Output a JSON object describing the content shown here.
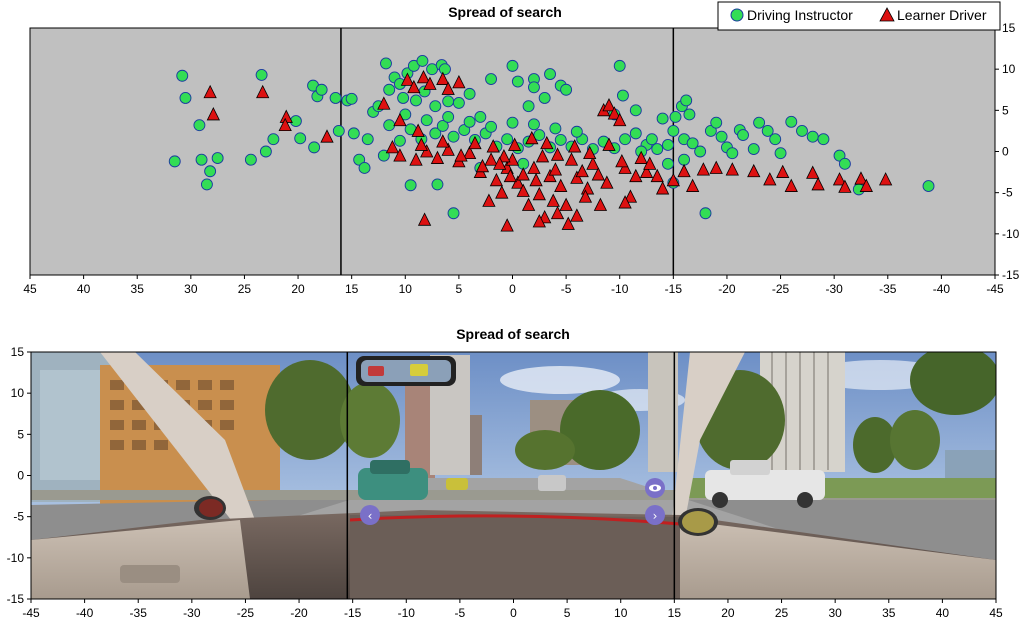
{
  "chart_data": [
    {
      "type": "scatter",
      "title": "Spread of search",
      "xlabel": "",
      "ylabel": "",
      "xlim": [
        45,
        -45
      ],
      "ylim": [
        -15,
        15
      ],
      "x_ticks": [
        45,
        40,
        35,
        30,
        25,
        20,
        15,
        10,
        5,
        0,
        -5,
        -10,
        -15,
        -20,
        -25,
        -30,
        -35,
        -40,
        -45
      ],
      "y_ticks": [
        15,
        10,
        5,
        0,
        -5,
        -10,
        -15
      ],
      "y_axis_side": "right",
      "grid": false,
      "background_color": "#c0c0c0",
      "reference_lines_x": [
        16,
        -15
      ],
      "legend": {
        "placement": "top-right",
        "entries": [
          "Driving Instructor",
          "Learner Driver"
        ]
      },
      "series": [
        {
          "name": "Driving Instructor",
          "marker": "circle",
          "color": "#33dd55",
          "points": [
            [
              30.8,
              9.2
            ],
            [
              30.5,
              6.5
            ],
            [
              31.5,
              -1.2
            ],
            [
              29.2,
              3.2
            ],
            [
              29,
              -1
            ],
            [
              28.5,
              -4
            ],
            [
              27.5,
              -0.8
            ],
            [
              28.2,
              -2.4
            ],
            [
              23.4,
              9.3
            ],
            [
              22.3,
              1.5
            ],
            [
              23,
              0
            ],
            [
              24.4,
              -1
            ],
            [
              20.2,
              3.7
            ],
            [
              19.8,
              1.6
            ],
            [
              18.6,
              8
            ],
            [
              18.2,
              6.7
            ],
            [
              18.5,
              0.5
            ],
            [
              17.8,
              7.5
            ],
            [
              16.5,
              6.5
            ],
            [
              16.2,
              2.5
            ],
            [
              15.4,
              6.2
            ],
            [
              15,
              6.4
            ],
            [
              14.8,
              2.2
            ],
            [
              14.3,
              -1
            ],
            [
              13.5,
              1.5
            ],
            [
              13,
              4.8
            ],
            [
              12.5,
              5.5
            ],
            [
              11.8,
              10.7
            ],
            [
              11,
              9
            ],
            [
              10.5,
              8.2
            ],
            [
              9.8,
              9.5
            ],
            [
              9.2,
              10.4
            ],
            [
              8.4,
              11
            ],
            [
              7.5,
              10
            ],
            [
              6.6,
              10.5
            ],
            [
              6.3,
              10
            ],
            [
              9,
              6.2
            ],
            [
              8.2,
              7.3
            ],
            [
              7.2,
              5.5
            ],
            [
              6,
              6.1
            ],
            [
              5,
              5.9
            ],
            [
              4,
              7
            ],
            [
              3,
              4.2
            ],
            [
              2,
              8.8
            ],
            [
              0,
              10.4
            ],
            [
              -0.5,
              8.5
            ],
            [
              -1.5,
              5.5
            ],
            [
              -2,
              8.8
            ],
            [
              -3.5,
              9.4
            ],
            [
              -4.5,
              8
            ],
            [
              -5,
              7.5
            ],
            [
              -2,
              7.8
            ],
            [
              -3,
              6.5
            ],
            [
              -10,
              10.4
            ],
            [
              -9.5,
              4.5
            ],
            [
              -10.3,
              6.8
            ],
            [
              -11.5,
              5
            ],
            [
              -14,
              4
            ],
            [
              -15.2,
              4.2
            ],
            [
              -15.8,
              5.5
            ],
            [
              -16.2,
              6.2
            ],
            [
              -16.5,
              4.5
            ],
            [
              -15,
              2.5
            ],
            [
              -16,
              1.5
            ],
            [
              -14.5,
              0.8
            ],
            [
              -16.8,
              1
            ],
            [
              -17.5,
              0
            ],
            [
              -18.5,
              2.5
            ],
            [
              -19.5,
              1.8
            ],
            [
              -20,
              0.5
            ],
            [
              -20.5,
              -0.2
            ],
            [
              -19,
              3.5
            ],
            [
              -21.2,
              2.6
            ],
            [
              -21.5,
              2
            ],
            [
              -22.5,
              0.3
            ],
            [
              -23,
              3.5
            ],
            [
              -23.8,
              2.5
            ],
            [
              -24.5,
              1.5
            ],
            [
              -25,
              -0.2
            ],
            [
              -26,
              3.6
            ],
            [
              -27,
              2.5
            ],
            [
              -28,
              1.8
            ],
            [
              -29,
              1.5
            ],
            [
              -30.5,
              -0.5
            ],
            [
              -31,
              -1.5
            ],
            [
              -32.3,
              -4.6
            ],
            [
              -38.8,
              -4.2
            ],
            [
              -18,
              -7.5
            ],
            [
              -15,
              -3.8
            ],
            [
              -14.5,
              -1.5
            ],
            [
              -16,
              -1
            ],
            [
              13.8,
              -2
            ],
            [
              11.5,
              3.2
            ],
            [
              12,
              -0.5
            ],
            [
              10.5,
              1.3
            ],
            [
              9.5,
              2.7
            ],
            [
              8.5,
              1.5
            ],
            [
              7.2,
              2.2
            ],
            [
              6.5,
              3.1
            ],
            [
              5.5,
              1.8
            ],
            [
              4.5,
              2.6
            ],
            [
              3.5,
              1.4
            ],
            [
              2.5,
              2.2
            ],
            [
              1.5,
              0.6
            ],
            [
              0.5,
              1.5
            ],
            [
              -0.5,
              0.4
            ],
            [
              -1.5,
              1.2
            ],
            [
              -2.5,
              2
            ],
            [
              -3.5,
              0.5
            ],
            [
              -4.5,
              1.4
            ],
            [
              -5.5,
              0.6
            ],
            [
              -6.5,
              1.5
            ],
            [
              -7.5,
              0.3
            ],
            [
              -8.5,
              1.2
            ],
            [
              -9.5,
              0.4
            ],
            [
              -10.5,
              1.5
            ],
            [
              -11.5,
              2.2
            ],
            [
              -12.5,
              0.8
            ],
            [
              -13,
              1.5
            ],
            [
              -13.5,
              0.3
            ],
            [
              -12,
              0
            ],
            [
              -6,
              2.4
            ],
            [
              -4,
              2.8
            ],
            [
              -2,
              3.3
            ],
            [
              0,
              3.5
            ],
            [
              2,
              3
            ],
            [
              4,
              3.6
            ],
            [
              6,
              4.2
            ],
            [
              8,
              3.8
            ],
            [
              10,
              4.5
            ],
            [
              7,
              -4
            ],
            [
              9.5,
              -4.1
            ],
            [
              5.5,
              -7.5
            ],
            [
              3,
              -2
            ],
            [
              -1,
              -1.5
            ],
            [
              11.5,
              7.5
            ],
            [
              10.2,
              6.5
            ]
          ]
        },
        {
          "name": "Learner Driver",
          "marker": "triangle",
          "color": "#dd1111",
          "points": [
            [
              28.2,
              7.2
            ],
            [
              27.9,
              4.5
            ],
            [
              23.3,
              7.2
            ],
            [
              21.1,
              4.2
            ],
            [
              21.2,
              3.2
            ],
            [
              17.3,
              1.8
            ],
            [
              12,
              5.8
            ],
            [
              9.8,
              8.7
            ],
            [
              9.2,
              7.8
            ],
            [
              8.3,
              9
            ],
            [
              7.7,
              8.2
            ],
            [
              6.5,
              8.8
            ],
            [
              6,
              7.6
            ],
            [
              5,
              8.4
            ],
            [
              10.5,
              3.8
            ],
            [
              8.8,
              2.5
            ],
            [
              11.2,
              0.5
            ],
            [
              10.5,
              -0.5
            ],
            [
              9,
              -1
            ],
            [
              8,
              0
            ],
            [
              7,
              -0.8
            ],
            [
              6,
              0.2
            ],
            [
              5,
              -1.2
            ],
            [
              4,
              -0.2
            ],
            [
              3,
              -2.5
            ],
            [
              2,
              -1
            ],
            [
              1.5,
              -3.5
            ],
            [
              1,
              -5
            ],
            [
              0.5,
              -2
            ],
            [
              0,
              -1
            ],
            [
              -0.5,
              -3.8
            ],
            [
              -1,
              -4.8
            ],
            [
              -1.5,
              -6.5
            ],
            [
              -2,
              -2
            ],
            [
              -2.5,
              -5.2
            ],
            [
              -3,
              -8
            ],
            [
              -3.5,
              -3
            ],
            [
              -4,
              -2.2
            ],
            [
              -4.5,
              -4.2
            ],
            [
              -5,
              -6.5
            ],
            [
              -5.5,
              -1
            ],
            [
              -6,
              -3.2
            ],
            [
              -6.5,
              -2.4
            ],
            [
              -7,
              -4.5
            ],
            [
              -7.5,
              -1.5
            ],
            [
              -8,
              -2.8
            ],
            [
              -8.5,
              5
            ],
            [
              -9,
              5.6
            ],
            [
              -9.5,
              4.6
            ],
            [
              -10,
              3.8
            ],
            [
              -10.5,
              -2
            ],
            [
              -11,
              -5.5
            ],
            [
              -11.5,
              -3
            ],
            [
              -12,
              -0.8
            ],
            [
              -12.5,
              -2.5
            ],
            [
              -13.5,
              -3
            ],
            [
              -14,
              -4.5
            ],
            [
              -15,
              -3.5
            ],
            [
              -16,
              -2.4
            ],
            [
              -16.8,
              -4.2
            ],
            [
              -17.8,
              -2.2
            ],
            [
              -19,
              -2
            ],
            [
              -20.5,
              -2.2
            ],
            [
              -22.5,
              -2.4
            ],
            [
              -24,
              -3.4
            ],
            [
              -25.2,
              -2.5
            ],
            [
              -26,
              -4.2
            ],
            [
              -28,
              -2.6
            ],
            [
              -28.5,
              -4
            ],
            [
              -30.5,
              -3.4
            ],
            [
              -31,
              -4.3
            ],
            [
              -32.5,
              -3.3
            ],
            [
              -33,
              -4.2
            ],
            [
              -34.8,
              -3.4
            ],
            [
              8.2,
              -8.3
            ],
            [
              2.2,
              -6
            ],
            [
              0.5,
              -9
            ],
            [
              -2.5,
              -8.5
            ],
            [
              -4.2,
              -7.5
            ],
            [
              -6,
              -7.8
            ],
            [
              -8.2,
              -6.5
            ],
            [
              -10.5,
              -6.2
            ],
            [
              -1,
              -2.8
            ],
            [
              -2.8,
              -0.6
            ],
            [
              -4.2,
              -0.4
            ],
            [
              -5.8,
              0.6
            ],
            [
              -7.2,
              -0.2
            ],
            [
              -9,
              0.8
            ],
            [
              -10.2,
              -1.2
            ],
            [
              1.8,
              0.6
            ],
            [
              3.5,
              1
            ],
            [
              4.8,
              -0.5
            ],
            [
              6.5,
              1.2
            ],
            [
              8.5,
              0.8
            ],
            [
              2.8,
              -1.8
            ],
            [
              0.8,
              -0.6
            ],
            [
              -0.2,
              0.8
            ],
            [
              -1.8,
              1.6
            ],
            [
              -3.2,
              1
            ],
            [
              -6.8,
              -5.5
            ],
            [
              -8.8,
              -3.8
            ],
            [
              -12.8,
              -1.5
            ],
            [
              -5.2,
              -8.8
            ],
            [
              0.2,
              -3
            ],
            [
              -3.8,
              -6
            ],
            [
              1.2,
              -1.5
            ],
            [
              -2.2,
              -3.5
            ]
          ]
        }
      ]
    },
    {
      "type": "scatter",
      "title": "Spread of search",
      "xlabel": "",
      "ylabel": "",
      "xlim": [
        -45,
        45
      ],
      "ylim": [
        -15,
        15
      ],
      "x_ticks": [
        -45,
        -40,
        -35,
        -30,
        -25,
        -20,
        -15,
        -10,
        -5,
        0,
        5,
        10,
        15,
        20,
        25,
        30,
        35,
        40,
        45
      ],
      "y_ticks": [
        15,
        10,
        5,
        0,
        -5,
        -10,
        -15
      ],
      "y_axis_side": "left",
      "grid": false,
      "background": "driving-simulator-windscreen-view",
      "reference_lines_x": [
        -15.5,
        15
      ],
      "series": []
    }
  ]
}
